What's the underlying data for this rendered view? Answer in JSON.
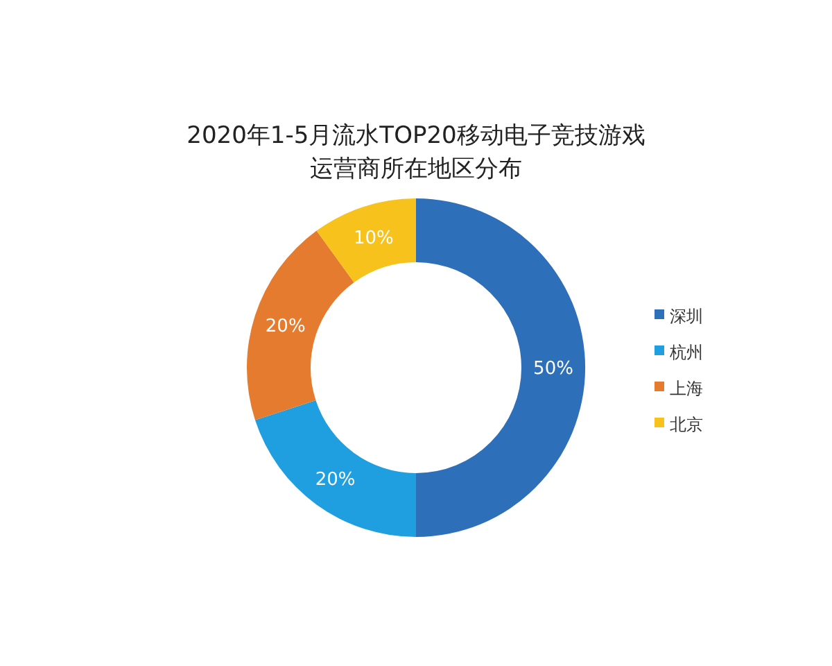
{
  "chart_data": {
    "type": "donut",
    "title": "2020年1-5月流水TOP20移动电子竞技游戏运营商所在地区分布",
    "categories": [
      "深圳",
      "杭州",
      "上海",
      "北京"
    ],
    "values": [
      50,
      20,
      20,
      10
    ],
    "colors": [
      "#2e6fba",
      "#1f9fe0",
      "#e57b2e",
      "#f7c21b"
    ],
    "value_labels": [
      "50%",
      "20%",
      "20%",
      "10%"
    ],
    "legend": "right"
  }
}
